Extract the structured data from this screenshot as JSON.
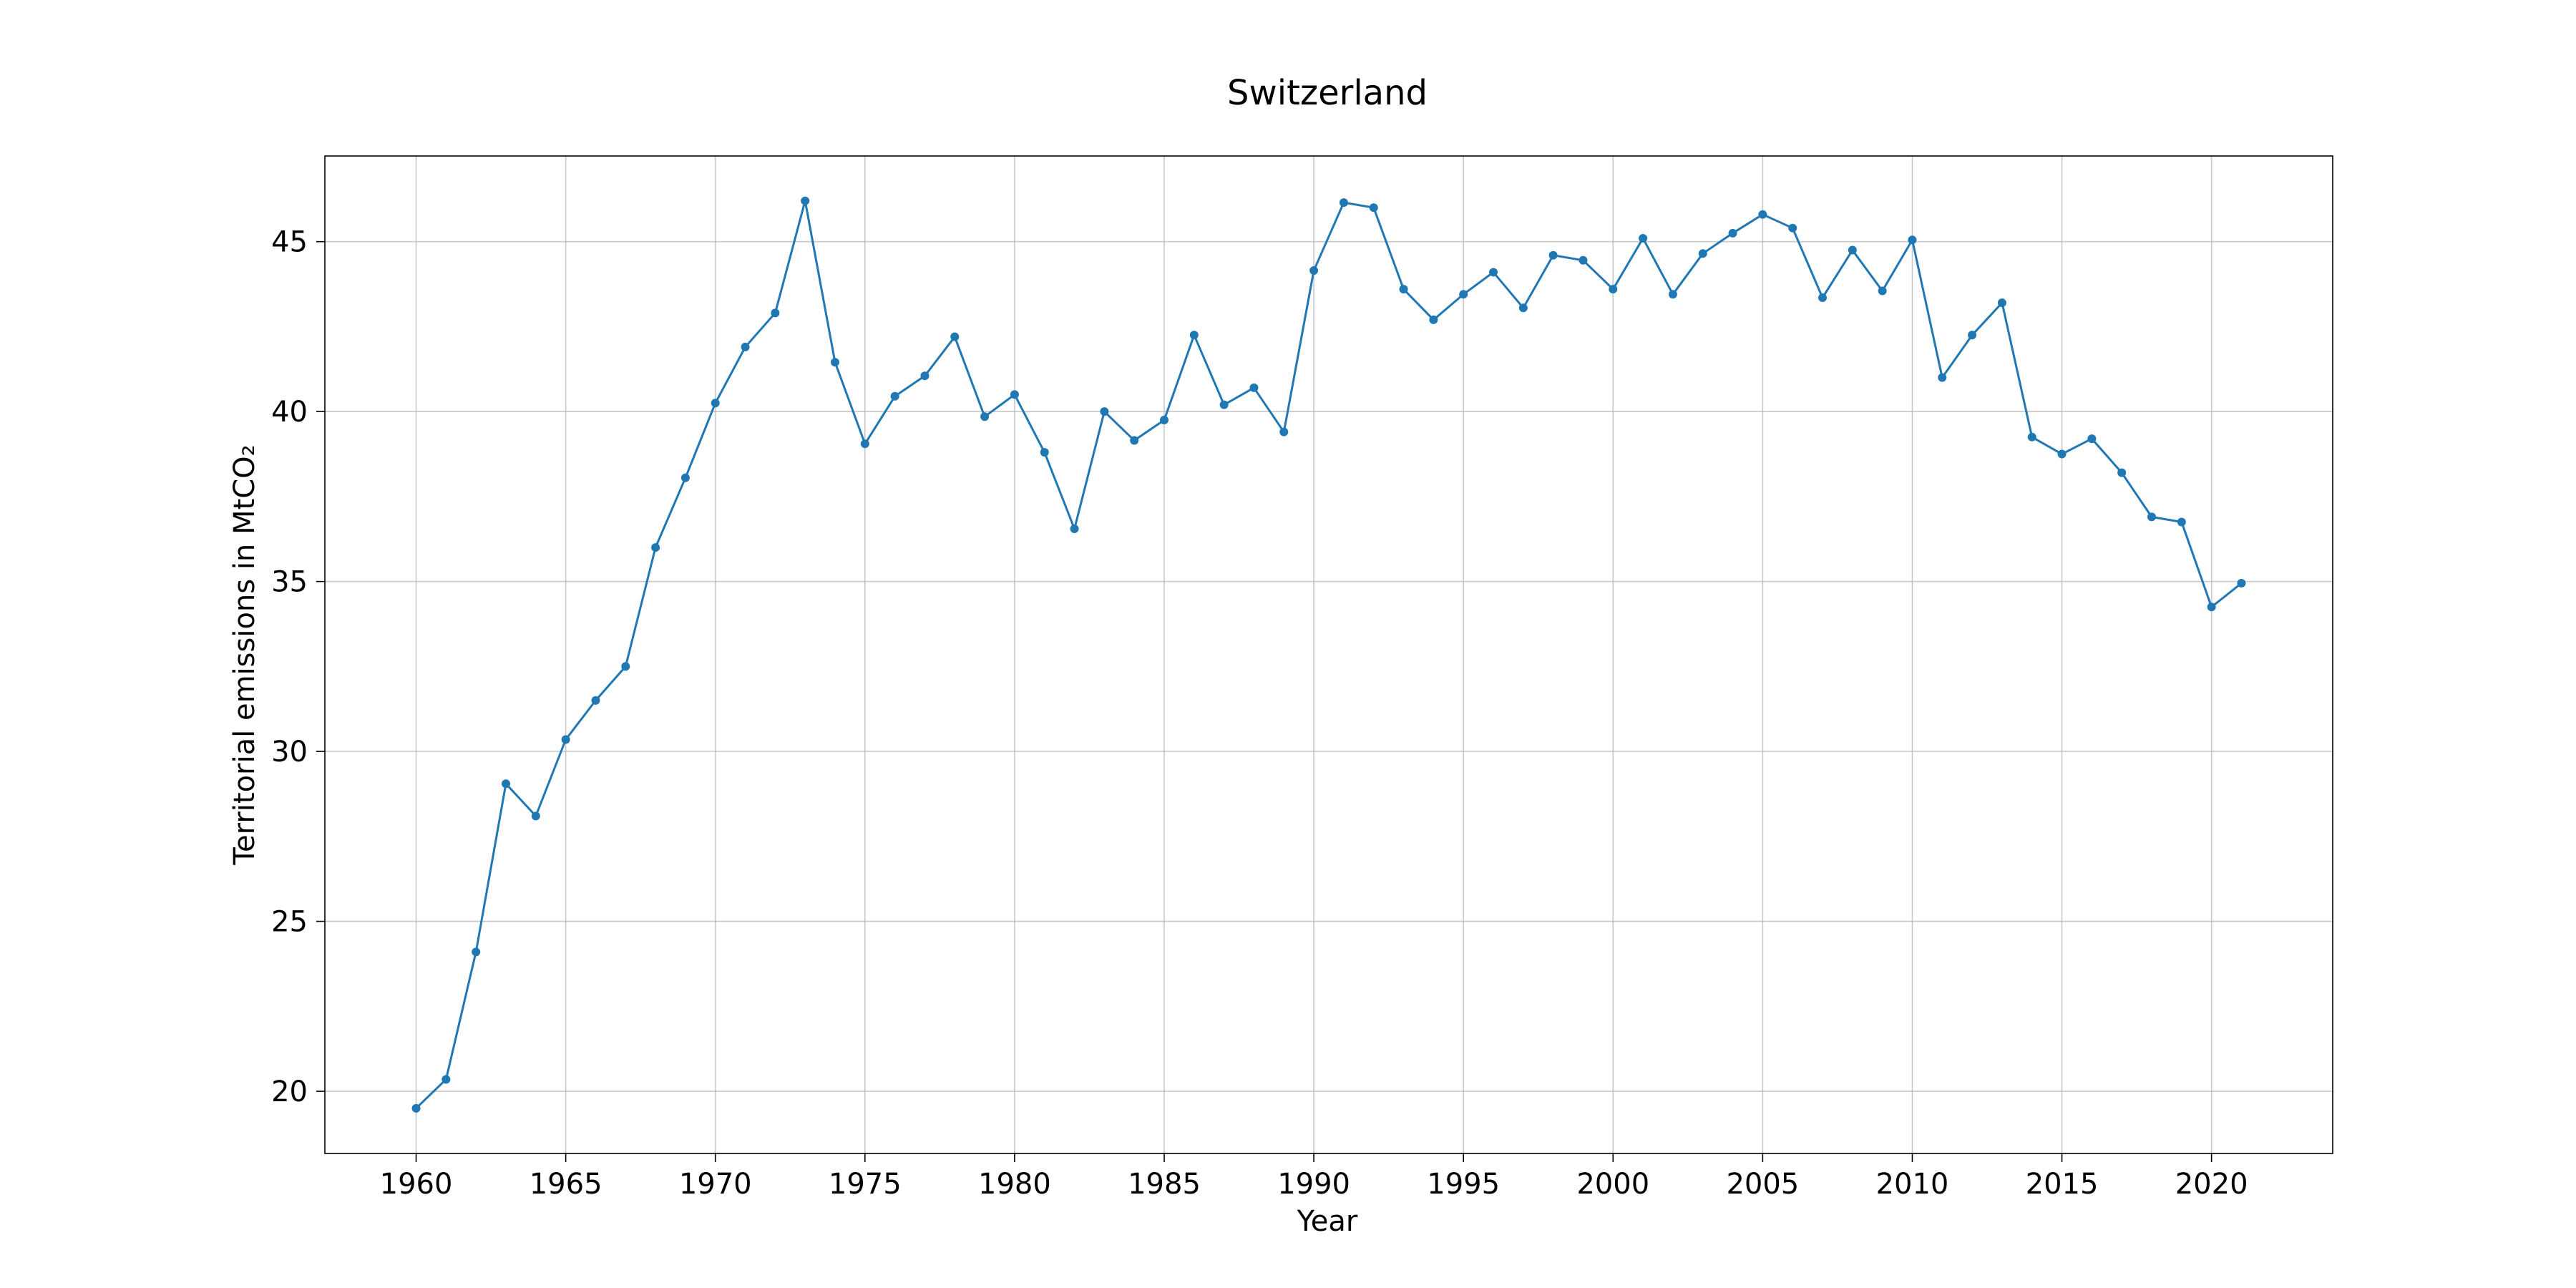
{
  "chart_data": {
    "type": "line",
    "title": "Switzerland",
    "xlabel": "Year",
    "ylabel": "Territorial emissions in MtCO₂",
    "xlim": [
      1956.95,
      2024.05
    ],
    "ylim": [
      18.17,
      47.52
    ],
    "xticks": [
      1960,
      1965,
      1970,
      1975,
      1980,
      1985,
      1990,
      1995,
      2000,
      2005,
      2010,
      2015,
      2020
    ],
    "yticks": [
      20,
      25,
      30,
      35,
      40,
      45
    ],
    "grid": true,
    "legend": "none",
    "series": [
      {
        "color": "#1f77b4",
        "marker": "circle",
        "x": [
          1960,
          1961,
          1962,
          1963,
          1964,
          1965,
          1966,
          1967,
          1968,
          1969,
          1970,
          1971,
          1972,
          1973,
          1974,
          1975,
          1976,
          1977,
          1978,
          1979,
          1980,
          1981,
          1982,
          1983,
          1984,
          1985,
          1986,
          1987,
          1988,
          1989,
          1990,
          1991,
          1992,
          1993,
          1994,
          1995,
          1996,
          1997,
          1998,
          1999,
          2000,
          2001,
          2002,
          2003,
          2004,
          2005,
          2006,
          2007,
          2008,
          2009,
          2010,
          2011,
          2012,
          2013,
          2014,
          2015,
          2016,
          2017,
          2018,
          2019,
          2020,
          2021
        ],
        "values": [
          19.5,
          20.35,
          24.1,
          29.05,
          28.1,
          30.35,
          31.5,
          32.5,
          36.0,
          38.05,
          40.25,
          41.9,
          42.9,
          46.2,
          41.45,
          39.05,
          40.45,
          41.05,
          42.2,
          39.85,
          40.5,
          38.8,
          36.55,
          40.0,
          39.15,
          39.75,
          42.25,
          40.2,
          40.7,
          39.4,
          44.15,
          46.15,
          46.0,
          43.6,
          42.7,
          43.45,
          44.1,
          43.05,
          44.6,
          44.45,
          43.6,
          45.1,
          43.45,
          44.65,
          45.25,
          45.8,
          45.4,
          43.35,
          44.75,
          43.55,
          45.05,
          41.0,
          42.25,
          43.2,
          39.25,
          38.75,
          39.2,
          38.2,
          36.9,
          36.75,
          34.25,
          34.95
        ]
      }
    ]
  }
}
